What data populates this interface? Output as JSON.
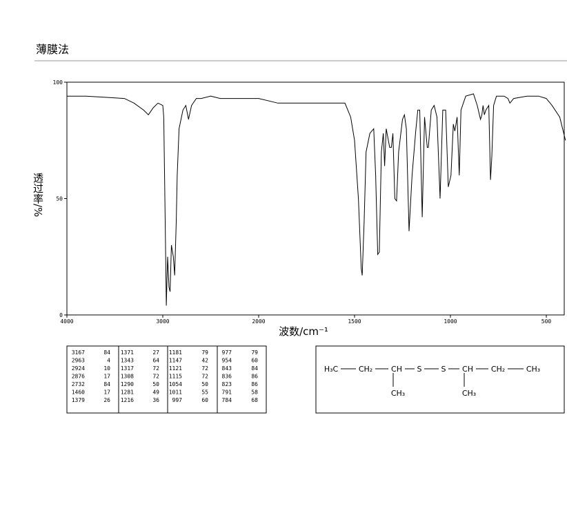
{
  "header": {
    "title": "薄膜法"
  },
  "chart_data": {
    "type": "line",
    "x_label": "波数/cm⁻¹",
    "y_label": "透过率/%",
    "xlim": [
      4000,
      400
    ],
    "xticks": [
      4000,
      3000,
      2000,
      1500,
      1000,
      500
    ],
    "ylim": [
      0,
      100
    ],
    "yticks": [
      0,
      50,
      100
    ],
    "series": [
      {
        "color": "#000000",
        "x": [
          4000,
          3800,
          3600,
          3400,
          3300,
          3200,
          3150,
          3100,
          3050,
          3000,
          2990,
          2975,
          2963,
          2950,
          2935,
          2924,
          2910,
          2890,
          2876,
          2860,
          2850,
          2830,
          2790,
          2760,
          2732,
          2700,
          2650,
          2600,
          2500,
          2400,
          2200,
          2000,
          1900,
          1800,
          1750,
          1700,
          1600,
          1550,
          1520,
          1500,
          1480,
          1465,
          1460,
          1450,
          1440,
          1420,
          1400,
          1390,
          1379,
          1371,
          1360,
          1350,
          1343,
          1335,
          1317,
          1308,
          1300,
          1290,
          1281,
          1270,
          1250,
          1240,
          1230,
          1216,
          1200,
          1181,
          1170,
          1160,
          1147,
          1135,
          1121,
          1115,
          1100,
          1085,
          1070,
          1054,
          1040,
          1025,
          1011,
          997,
          985,
          977,
          965,
          954,
          945,
          920,
          880,
          860,
          843,
          836,
          830,
          823,
          815,
          800,
          791,
          784,
          775,
          760,
          720,
          700,
          690,
          670,
          600,
          540,
          500,
          470,
          430,
          400
        ],
        "values": [
          94,
          94,
          93.5,
          93,
          91,
          88,
          86,
          89,
          91,
          90,
          85,
          40,
          4,
          25,
          12,
          10,
          30,
          25,
          17,
          40,
          60,
          80,
          88,
          90,
          84,
          90,
          93,
          93,
          94,
          93,
          93,
          93,
          91,
          91,
          91,
          91,
          91,
          91,
          85,
          75,
          50,
          20,
          17,
          40,
          70,
          78,
          80,
          60,
          26,
          27,
          70,
          78,
          64,
          80,
          72,
          72,
          78,
          50,
          49,
          70,
          84,
          86,
          80,
          36,
          60,
          79,
          88,
          88,
          42,
          85,
          72,
          72,
          88,
          90,
          85,
          50,
          88,
          88,
          55,
          60,
          82,
          79,
          85,
          60,
          88,
          94,
          95,
          90,
          84,
          86,
          90,
          86,
          88,
          90,
          58,
          68,
          90,
          94,
          94,
          93,
          91,
          93,
          94,
          94,
          93,
          90,
          85,
          75
        ]
      }
    ]
  },
  "peak_table": {
    "rows": [
      [
        3167,
        84,
        1371,
        27,
        1181,
        79,
        977,
        79
      ],
      [
        2963,
        4,
        1343,
        64,
        1147,
        42,
        954,
        60
      ],
      [
        2924,
        10,
        1317,
        72,
        1121,
        72,
        843,
        84
      ],
      [
        2876,
        17,
        1308,
        72,
        1115,
        72,
        836,
        86
      ],
      [
        2732,
        84,
        1290,
        50,
        1054,
        50,
        823,
        86
      ],
      [
        1460,
        17,
        1281,
        49,
        1011,
        55,
        791,
        58
      ],
      [
        1379,
        26,
        1216,
        36,
        997,
        60,
        784,
        68
      ]
    ]
  },
  "structure": {
    "chain": [
      "H₃C",
      "CH₂",
      "CH",
      "S",
      "S",
      "CH",
      "CH₂",
      "CH₃"
    ],
    "branches": [
      "CH₃",
      "CH₃"
    ]
  }
}
